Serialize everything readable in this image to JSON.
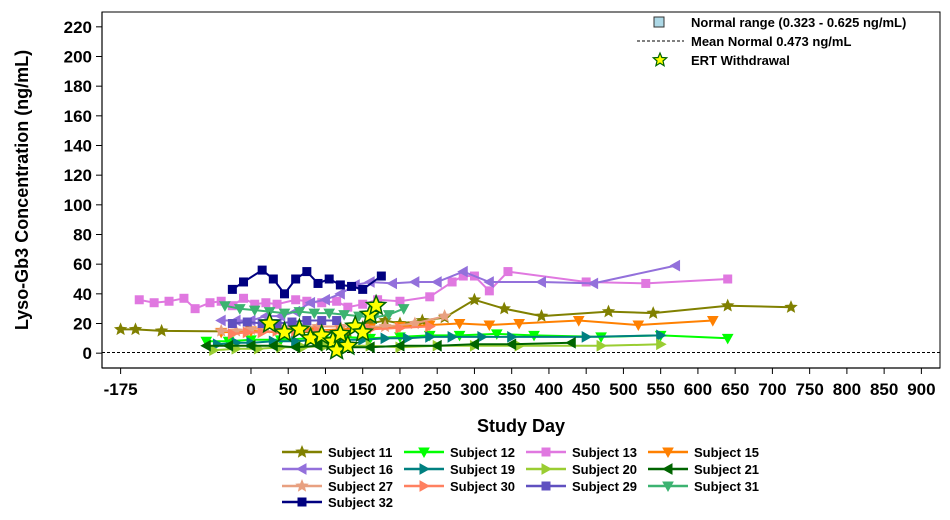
{
  "chart_data": {
    "type": "line",
    "xlabel": "Study Day",
    "ylabel": "Lyso-Gb3 Concentration (ng/mL)",
    "xlim": [
      -200,
      925
    ],
    "ylim": [
      -10,
      230
    ],
    "xticks": [
      -175,
      0,
      50,
      100,
      150,
      200,
      250,
      300,
      350,
      400,
      450,
      500,
      550,
      600,
      650,
      700,
      750,
      800,
      850,
      900
    ],
    "xtick_labels": [
      "-175",
      "0",
      "50",
      "100",
      "150",
      "200",
      "250",
      "300",
      "350",
      "400",
      "450",
      "500",
      "550",
      "600",
      "650",
      "700",
      "750",
      "800",
      "850",
      "900"
    ],
    "yticks": [
      0,
      20,
      40,
      60,
      80,
      100,
      120,
      140,
      160,
      180,
      200,
      220
    ],
    "ytick_labels": [
      "0",
      "20",
      "40",
      "60",
      "80",
      "100",
      "120",
      "140",
      "160",
      "180",
      "200",
      "220"
    ],
    "reference": {
      "normal_range": [
        0.323,
        0.625
      ],
      "normal_range_label": "Normal range (0.323 - 0.625 ng/mL)",
      "mean_normal": 0.473,
      "mean_normal_label": "Mean Normal 0.473 ng/mL",
      "withdrawal_label": "ERT Withdrawal",
      "normal_range_color": "#add8e6",
      "withdrawal_color": "#ffff00"
    },
    "series": [
      {
        "name": "Subject 11",
        "color": "#808000",
        "marker": "star",
        "x": [
          -175,
          -155,
          -120,
          130,
          160,
          180,
          200,
          230,
          260,
          300,
          340,
          390,
          480,
          540,
          640,
          725
        ],
        "y": [
          16,
          16,
          15,
          14,
          20,
          22,
          20,
          22,
          24,
          36,
          30,
          25,
          28,
          27,
          32,
          31
        ]
      },
      {
        "name": "Subject 12",
        "color": "#00ff00",
        "marker": "triangle-down",
        "x": [
          -60,
          -30,
          0,
          40,
          80,
          120,
          160,
          200,
          240,
          280,
          330,
          380,
          470,
          550,
          640
        ],
        "y": [
          8,
          8,
          9,
          9,
          10,
          11,
          10,
          11,
          12,
          12,
          13,
          12,
          11,
          12,
          10
        ]
      },
      {
        "name": "Subject 13",
        "color": "#e078e0",
        "marker": "square",
        "x": [
          -150,
          -130,
          -110,
          -90,
          -75,
          -55,
          -40,
          -25,
          -10,
          5,
          20,
          35,
          60,
          75,
          95,
          115,
          130,
          150,
          170,
          200,
          240,
          270,
          285,
          300,
          320,
          345,
          450,
          530,
          640
        ],
        "y": [
          36,
          34,
          35,
          37,
          30,
          34,
          35,
          32,
          37,
          33,
          34,
          33,
          36,
          35,
          34,
          35,
          31,
          33,
          36,
          35,
          38,
          48,
          52,
          52,
          42,
          55,
          48,
          47,
          50
        ]
      },
      {
        "name": "Subject 15",
        "color": "#ff8000",
        "marker": "triangle-down",
        "x": [
          -40,
          0,
          40,
          80,
          120,
          160,
          200,
          240,
          280,
          320,
          360,
          440,
          520,
          620
        ],
        "y": [
          14,
          15,
          14,
          15,
          16,
          17,
          18,
          19,
          20,
          19,
          20,
          22,
          19,
          22
        ]
      },
      {
        "name": "Subject 16",
        "color": "#9370db",
        "marker": "triangle-left",
        "x": [
          -40,
          -20,
          0,
          20,
          40,
          60,
          80,
          100,
          120,
          140,
          160,
          190,
          220,
          250,
          285,
          320,
          390,
          460,
          570
        ],
        "y": [
          22,
          22,
          22,
          25,
          25,
          28,
          34,
          36,
          40,
          46,
          48,
          47,
          48,
          48,
          55,
          48,
          48,
          47,
          59
        ]
      },
      {
        "name": "Subject 19",
        "color": "#008080",
        "marker": "triangle-right",
        "x": [
          -45,
          -20,
          0,
          30,
          60,
          90,
          120,
          150,
          180,
          210,
          240,
          270,
          310,
          350,
          450,
          550
        ],
        "y": [
          6,
          7,
          7,
          8,
          8,
          9,
          9,
          9,
          10,
          10,
          11,
          11,
          11,
          11,
          11,
          12
        ]
      },
      {
        "name": "Subject 20",
        "color": "#9acd32",
        "marker": "triangle-right",
        "x": [
          -50,
          -20,
          10,
          40,
          70,
          100,
          130,
          160,
          200,
          250,
          300,
          360,
          470,
          550
        ],
        "y": [
          2,
          3,
          3,
          4,
          4,
          5,
          5,
          5,
          4,
          5,
          5,
          5,
          5,
          6
        ]
      },
      {
        "name": "Subject 21",
        "color": "#006400",
        "marker": "triangle-left",
        "x": [
          -60,
          -30,
          0,
          30,
          60,
          90,
          120,
          160,
          200,
          250,
          300,
          350,
          430
        ],
        "y": [
          5,
          5,
          5,
          5,
          4,
          5,
          4,
          4,
          5,
          5,
          6,
          6,
          7
        ]
      },
      {
        "name": "Subject 27",
        "color": "#e8a080",
        "marker": "star",
        "x": [
          -40,
          -20,
          0,
          20,
          40,
          60,
          90,
          120,
          150,
          180,
          220,
          260
        ],
        "y": [
          15,
          15,
          16,
          17,
          17,
          18,
          18,
          18,
          18,
          18,
          20,
          25
        ]
      },
      {
        "name": "Subject 30",
        "color": "#ff8060",
        "marker": "triangle-right",
        "x": [
          -25,
          -5,
          15,
          35,
          60,
          90,
          120,
          160,
          200,
          240
        ],
        "y": [
          13,
          14,
          14,
          15,
          15,
          15,
          15,
          16,
          17,
          18
        ]
      },
      {
        "name": "Subject 29",
        "color": "#6050c0",
        "marker": "square",
        "x": [
          -25,
          -5,
          15,
          35,
          55,
          75,
          95,
          115
        ],
        "y": [
          20,
          21,
          20,
          20,
          21,
          22,
          22,
          22
        ]
      },
      {
        "name": "Subject 31",
        "color": "#3cb371",
        "marker": "triangle-down",
        "x": [
          -35,
          -15,
          5,
          25,
          45,
          65,
          85,
          105,
          125,
          145,
          165,
          185,
          205
        ],
        "y": [
          32,
          30,
          29,
          28,
          27,
          28,
          27,
          27,
          26,
          25,
          24,
          26,
          30
        ]
      },
      {
        "name": "Subject 32",
        "color": "#000080",
        "marker": "square",
        "x": [
          -25,
          -10,
          15,
          30,
          45,
          60,
          75,
          90,
          105,
          120,
          135,
          150,
          175
        ],
        "y": [
          43,
          48,
          56,
          50,
          40,
          50,
          55,
          47,
          50,
          46,
          45,
          43,
          52
        ]
      }
    ],
    "withdrawal_points": {
      "x": [
        25,
        45,
        65,
        80,
        95,
        110,
        115,
        120,
        130,
        140,
        150,
        160,
        168
      ],
      "y": [
        20,
        14,
        16,
        10,
        12,
        8,
        2,
        13,
        5,
        18,
        14,
        26,
        32
      ]
    },
    "legend": {
      "columns": [
        [
          "Subject 11",
          "Subject 16",
          "Subject 27",
          "Subject 32"
        ],
        [
          "Subject 12",
          "Subject 19",
          "Subject 30"
        ],
        [
          "Subject 13",
          "Subject 20",
          "Subject 29"
        ],
        [
          "Subject 15",
          "Subject 21",
          "Subject 31"
        ]
      ]
    }
  }
}
